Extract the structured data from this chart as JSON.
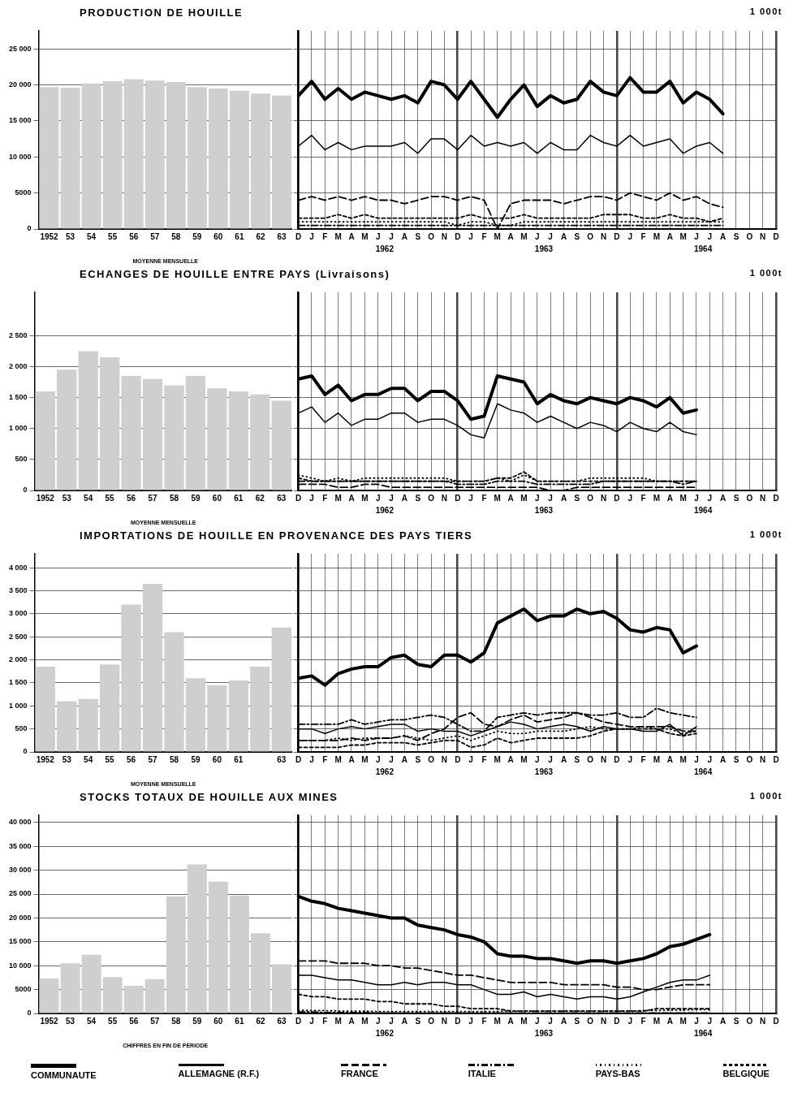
{
  "chart_data": [
    {
      "type": "bar",
      "title": "PRODUCTION DE HOUILLE",
      "xlabel": "MOYENNE MENSUELLE",
      "categories": [
        "1952",
        "53",
        "54",
        "55",
        "56",
        "57",
        "58",
        "59",
        "60",
        "61",
        "62",
        "63"
      ],
      "values": [
        19700,
        19600,
        20200,
        20500,
        20800,
        20600,
        20400,
        19700,
        19500,
        19200,
        18800,
        18500
      ],
      "color": "#cfcfcf",
      "ylim": [
        0,
        27500
      ],
      "yticks": [
        0,
        5000,
        {
          "value": 10000,
          "label": "10 000"
        },
        {
          "value": 15000,
          "label": "15 000"
        },
        {
          "value": 20000,
          "label": "20 000"
        },
        {
          "value": 25000,
          "label": "25 000"
        }
      ],
      "grid": "y"
    },
    {
      "type": "line",
      "ylabel": "1 000t",
      "annotations": [
        "1962",
        "1963",
        "1964"
      ],
      "categories": [
        "D",
        "J",
        "F",
        "M",
        "A",
        "M",
        "J",
        "J",
        "A",
        "S",
        "O",
        "N",
        "D",
        "J",
        "F",
        "M",
        "A",
        "M",
        "J",
        "J",
        "A",
        "S",
        "O",
        "N",
        "D",
        "J",
        "F",
        "M",
        "A",
        "M",
        "J",
        "J",
        "A",
        "S",
        "O",
        "N",
        "D"
      ],
      "ylim": [
        0,
        27500
      ],
      "yticks": [
        0,
        5000,
        10000,
        15000,
        20000,
        25000
      ],
      "tick_labels": "x",
      "grid": true,
      "series": [
        {
          "color": "#000000",
          "line_style": "solid",
          "values": [
            18500,
            20500,
            18000,
            19500,
            18000,
            19000,
            18500,
            18000,
            18500,
            17500,
            20500,
            20000,
            18000,
            20500,
            18000,
            15500,
            18000,
            20000,
            17000,
            18500,
            17500,
            18000,
            20500,
            19000,
            18500,
            21000,
            19000,
            19000,
            20500,
            17500,
            19000,
            18000,
            16000,
            null,
            null,
            null,
            null
          ]
        },
        {
          "color": "#000000",
          "line_style": "solid",
          "values": [
            11500,
            13000,
            11000,
            12000,
            11000,
            11500,
            11500,
            11500,
            12000,
            10500,
            12500,
            12500,
            11000,
            13000,
            11500,
            12000,
            11500,
            12000,
            10500,
            12000,
            11000,
            11000,
            13000,
            12000,
            11500,
            13000,
            11500,
            12000,
            12500,
            10500,
            11500,
            12000,
            10500,
            null,
            null,
            null,
            null
          ]
        },
        {
          "color": "#000000",
          "line_style": "dashed",
          "values": [
            4000,
            4500,
            4000,
            4500,
            4000,
            4500,
            4000,
            4000,
            3500,
            4000,
            4500,
            4500,
            4000,
            4500,
            4000,
            0,
            3500,
            4000,
            4000,
            4000,
            3500,
            4000,
            4500,
            4500,
            4000,
            5000,
            4500,
            4000,
            5000,
            4000,
            4500,
            3500,
            3000,
            null,
            null,
            null,
            null
          ]
        },
        {
          "color": "#000000",
          "line_style": "dashdot",
          "values": [
            500,
            500,
            500,
            500,
            500,
            500,
            500,
            500,
            500,
            500,
            500,
            500,
            500,
            500,
            500,
            500,
            500,
            500,
            500,
            500,
            500,
            500,
            500,
            500,
            500,
            500,
            500,
            500,
            500,
            500,
            500,
            500,
            500,
            null,
            null,
            null,
            null
          ]
        },
        {
          "color": "#000000",
          "line_style": "dotted",
          "values": [
            1000,
            1000,
            1000,
            1000,
            1000,
            1000,
            1000,
            1000,
            1000,
            1000,
            1000,
            1000,
            500,
            1000,
            1000,
            500,
            500,
            1000,
            1000,
            1000,
            1000,
            1000,
            1000,
            1000,
            1000,
            1000,
            1000,
            1000,
            1000,
            1000,
            1000,
            1000,
            1000,
            null,
            null,
            null,
            null
          ]
        },
        {
          "color": "#000000",
          "line_style": "finedash",
          "values": [
            1500,
            1500,
            1500,
            2000,
            1500,
            2000,
            1500,
            1500,
            1500,
            1500,
            1500,
            1500,
            1500,
            2000,
            1500,
            1500,
            1500,
            2000,
            1500,
            1500,
            1500,
            1500,
            1500,
            2000,
            2000,
            2000,
            1500,
            1500,
            2000,
            1500,
            1500,
            1000,
            1500,
            null,
            null,
            null,
            null
          ]
        }
      ]
    },
    {
      "type": "bar",
      "title": "ECHANGES DE HOUILLE ENTRE PAYS (Livraisons)",
      "xlabel": "MOYENNE MENSUELLE",
      "categories": [
        "1952",
        "53",
        "54",
        "55",
        "56",
        "57",
        "58",
        "59",
        "60",
        "61",
        "62",
        "63"
      ],
      "values": [
        1600,
        1950,
        2250,
        2150,
        1850,
        1800,
        1700,
        1850,
        1650,
        1600,
        1550,
        1450
      ],
      "color": "#cfcfcf",
      "ylim": [
        0,
        3200
      ],
      "yticks": [
        0,
        500,
        {
          "value": 1000,
          "label": "1 000"
        },
        {
          "value": 1500,
          "label": "1 500"
        },
        {
          "value": 2000,
          "label": "2 000"
        },
        {
          "value": 2500,
          "label": "2 500"
        }
      ],
      "grid": "y"
    },
    {
      "type": "line",
      "ylabel": "1 000t",
      "annotations": [
        "1962",
        "1963",
        "1964"
      ],
      "categories": [
        "D",
        "J",
        "F",
        "M",
        "A",
        "M",
        "J",
        "J",
        "A",
        "S",
        "O",
        "N",
        "D",
        "J",
        "F",
        "M",
        "A",
        "M",
        "J",
        "J",
        "A",
        "S",
        "O",
        "N",
        "D",
        "J",
        "F",
        "M",
        "A",
        "M",
        "J",
        "J",
        "A",
        "S",
        "O",
        "N",
        "D"
      ],
      "ylim": [
        0,
        3200
      ],
      "yticks": [
        0,
        500,
        1000,
        1500,
        2000,
        2500
      ],
      "tick_labels": "x",
      "grid": true,
      "series": [
        {
          "color": "#000000",
          "line_style": "solid",
          "values": [
            1800,
            1850,
            1550,
            1700,
            1450,
            1550,
            1550,
            1650,
            1650,
            1450,
            1600,
            1600,
            1450,
            1150,
            1200,
            1850,
            1800,
            1750,
            1400,
            1550,
            1450,
            1400,
            1500,
            1450,
            1400,
            1500,
            1450,
            1350,
            1500,
            1250,
            1300,
            null,
            null,
            null,
            null,
            null,
            null
          ]
        },
        {
          "color": "#000000",
          "line_style": "solid",
          "values": [
            1250,
            1350,
            1100,
            1250,
            1050,
            1150,
            1150,
            1250,
            1250,
            1100,
            1150,
            1150,
            1050,
            900,
            850,
            1400,
            1300,
            1250,
            1100,
            1200,
            1100,
            1000,
            1100,
            1050,
            950,
            1100,
            1000,
            950,
            1100,
            950,
            900,
            null,
            null,
            null,
            null,
            null,
            null
          ]
        },
        {
          "color": "#000000",
          "line_style": "dashed",
          "values": [
            100,
            100,
            100,
            50,
            50,
            100,
            100,
            50,
            50,
            50,
            50,
            50,
            50,
            50,
            50,
            50,
            50,
            50,
            50,
            0,
            0,
            50,
            50,
            50,
            50,
            50,
            50,
            50,
            50,
            50,
            50,
            null,
            null,
            null,
            null,
            null,
            null
          ]
        },
        {
          "color": "#000000",
          "line_style": "dashdot",
          "values": [
            150,
            150,
            150,
            150,
            150,
            150,
            150,
            150,
            150,
            150,
            150,
            150,
            100,
            100,
            100,
            150,
            150,
            150,
            100,
            100,
            100,
            100,
            100,
            150,
            150,
            150,
            150,
            150,
            150,
            100,
            150,
            null,
            null,
            null,
            null,
            null,
            null
          ]
        },
        {
          "color": "#000000",
          "line_style": "dotted",
          "values": [
            250,
            200,
            150,
            200,
            150,
            200,
            200,
            200,
            200,
            200,
            200,
            200,
            150,
            150,
            150,
            200,
            150,
            250,
            150,
            150,
            150,
            150,
            200,
            200,
            200,
            200,
            200,
            150,
            150,
            150,
            150,
            null,
            null,
            null,
            null,
            null,
            null
          ]
        },
        {
          "color": "#000000",
          "line_style": "finedash",
          "values": [
            200,
            150,
            150,
            150,
            150,
            150,
            150,
            150,
            150,
            150,
            150,
            150,
            150,
            150,
            150,
            200,
            200,
            300,
            150,
            150,
            150,
            150,
            150,
            150,
            150,
            150,
            150,
            150,
            150,
            150,
            150,
            null,
            null,
            null,
            null,
            null,
            null
          ]
        }
      ]
    },
    {
      "type": "bar",
      "title": "IMPORTATIONS DE HOUILLE EN PROVENANCE DES PAYS TIERS",
      "xlabel": "MOYENNE MENSUELLE",
      "categories": [
        "1952",
        "53",
        "54",
        "55",
        "56",
        "57",
        "58",
        "59",
        "60",
        "61",
        null,
        "63"
      ],
      "values": [
        1850,
        1100,
        1150,
        1900,
        3200,
        3650,
        2600,
        1600,
        1450,
        1550,
        1850,
        2700
      ],
      "color": "#cfcfcf",
      "ylim": [
        0,
        4300
      ],
      "yticks": [
        0,
        500,
        {
          "value": 1000,
          "label": "1 000"
        },
        {
          "value": 1500,
          "label": "1 500"
        },
        {
          "value": 2000,
          "label": "2 000"
        },
        {
          "value": 2500,
          "label": "2 500"
        },
        {
          "value": 3000,
          "label": "3 000"
        },
        {
          "value": 3500,
          "label": "3 500"
        },
        {
          "value": 4000,
          "label": "4 000"
        }
      ],
      "grid": "y"
    },
    {
      "type": "line",
      "ylabel": "1 000t",
      "annotations": [
        "1962",
        "1963",
        "1964"
      ],
      "categories": [
        "D",
        "J",
        "F",
        "M",
        "A",
        "M",
        "J",
        "J",
        "A",
        "S",
        "O",
        "N",
        "D",
        "J",
        "F",
        "M",
        "A",
        "M",
        "J",
        "J",
        "A",
        "S",
        "O",
        "N",
        "D",
        "J",
        "F",
        "M",
        "A",
        "M",
        "J",
        "J",
        "A",
        "S",
        "O",
        "N",
        "D"
      ],
      "ylim": [
        0,
        4300
      ],
      "yticks": [
        0,
        500,
        1000,
        1500,
        2000,
        2500,
        3000,
        3500,
        4000
      ],
      "tick_labels": "x",
      "grid": true,
      "series": [
        {
          "color": "#000000",
          "line_style": "solid",
          "values": [
            1600,
            1650,
            1450,
            1700,
            1800,
            1850,
            1850,
            2050,
            2100,
            1900,
            1850,
            2100,
            2100,
            1950,
            2150,
            2800,
            2950,
            3100,
            2850,
            2950,
            2950,
            3100,
            3000,
            3050,
            2900,
            2650,
            2600,
            2700,
            2650,
            2150,
            2300,
            null,
            null,
            null,
            null,
            null,
            null
          ]
        },
        {
          "color": "#000000",
          "line_style": "solid",
          "values": [
            500,
            500,
            400,
            500,
            550,
            500,
            550,
            600,
            600,
            450,
            500,
            450,
            450,
            350,
            450,
            550,
            650,
            600,
            500,
            550,
            600,
            550,
            450,
            550,
            500,
            500,
            450,
            450,
            600,
            350,
            550,
            null,
            null,
            null,
            null,
            null,
            null
          ]
        },
        {
          "color": "#000000",
          "line_style": "dashed",
          "values": [
            250,
            250,
            250,
            250,
            300,
            250,
            300,
            300,
            350,
            250,
            400,
            500,
            750,
            850,
            600,
            550,
            700,
            800,
            650,
            700,
            750,
            850,
            750,
            650,
            600,
            550,
            550,
            550,
            550,
            450,
            450,
            null,
            null,
            null,
            null,
            null,
            null
          ]
        },
        {
          "color": "#000000",
          "line_style": "dashdot",
          "values": [
            600,
            600,
            600,
            600,
            700,
            600,
            650,
            700,
            700,
            750,
            800,
            750,
            600,
            450,
            450,
            750,
            800,
            850,
            800,
            850,
            850,
            850,
            800,
            800,
            850,
            750,
            750,
            950,
            850,
            800,
            750,
            null,
            null,
            null,
            null,
            null,
            null
          ]
        },
        {
          "color": "#000000",
          "line_style": "dotted",
          "values": [
            250,
            250,
            250,
            300,
            250,
            300,
            300,
            300,
            350,
            300,
            250,
            300,
            350,
            250,
            350,
            450,
            400,
            400,
            450,
            450,
            450,
            500,
            550,
            500,
            500,
            500,
            550,
            500,
            500,
            400,
            450,
            null,
            null,
            null,
            null,
            null,
            null
          ]
        },
        {
          "color": "#000000",
          "line_style": "finedash",
          "values": [
            100,
            100,
            100,
            100,
            150,
            150,
            200,
            200,
            200,
            150,
            200,
            250,
            250,
            100,
            150,
            300,
            200,
            250,
            300,
            300,
            300,
            300,
            350,
            450,
            500,
            500,
            500,
            500,
            400,
            350,
            400,
            null,
            null,
            null,
            null,
            null,
            null
          ]
        }
      ]
    },
    {
      "type": "bar",
      "title": "STOCKS TOTAUX DE HOUILLE AUX MINES",
      "xlabel": "CHIFFRES EN FIN DE PERIODE",
      "categories": [
        "1952",
        "53",
        "54",
        "55",
        "56",
        "57",
        "58",
        "59",
        "60",
        "61",
        "62",
        "63"
      ],
      "values": [
        7300,
        10500,
        12300,
        7600,
        5800,
        7200,
        24500,
        31200,
        27600,
        24700,
        16800,
        10300
      ],
      "color": "#cfcfcf",
      "ylim": [
        0,
        41500
      ],
      "yticks": [
        0,
        5000,
        {
          "value": 10000,
          "label": "10 000"
        },
        {
          "value": 15000,
          "label": "15 000"
        },
        {
          "value": 20000,
          "label": "20 000"
        },
        {
          "value": 25000,
          "label": "25 000"
        },
        {
          "value": 30000,
          "label": "30 000"
        },
        {
          "value": 35000,
          "label": "35 000"
        },
        {
          "value": 40000,
          "label": "40 000"
        }
      ],
      "grid": "y"
    },
    {
      "type": "line",
      "ylabel": "1 000t",
      "annotations": [
        "1962",
        "1963",
        "1964"
      ],
      "legend": "bottom",
      "categories": [
        "D",
        "J",
        "F",
        "M",
        "A",
        "M",
        "J",
        "J",
        "A",
        "S",
        "O",
        "N",
        "D",
        "J",
        "F",
        "M",
        "A",
        "M",
        "J",
        "J",
        "A",
        "S",
        "O",
        "N",
        "D",
        "J",
        "F",
        "M",
        "A",
        "M",
        "J",
        "J",
        "A",
        "S",
        "O",
        "N",
        "D"
      ],
      "ylim": [
        0,
        41500
      ],
      "yticks": [
        0,
        5000,
        10000,
        15000,
        20000,
        25000,
        30000,
        35000,
        40000
      ],
      "tick_labels": "x",
      "grid": true,
      "series": [
        {
          "name": "COMMUNAUTE",
          "color": "#000000",
          "line_style": "solid",
          "values": [
            24500,
            23500,
            23000,
            22000,
            21500,
            21000,
            20500,
            20000,
            20000,
            18500,
            18000,
            17500,
            16500,
            16000,
            15000,
            12500,
            12000,
            12000,
            11500,
            11500,
            11000,
            10500,
            11000,
            11000,
            10500,
            11000,
            11500,
            12500,
            14000,
            14500,
            15500,
            16500,
            null,
            null,
            null,
            null,
            null
          ]
        },
        {
          "name": "ALLEMAGNE (R.F.)",
          "color": "#000000",
          "line_style": "solid",
          "values": [
            8000,
            8000,
            7500,
            7000,
            7000,
            6500,
            6000,
            6000,
            6500,
            6000,
            6500,
            6500,
            6000,
            6000,
            5000,
            4000,
            4000,
            4500,
            3500,
            4000,
            3500,
            3000,
            3500,
            3500,
            3000,
            3500,
            4500,
            5500,
            6500,
            7000,
            7000,
            8000,
            null,
            null,
            null,
            null,
            null
          ]
        },
        {
          "name": "FRANCE",
          "color": "#000000",
          "line_style": "dashed",
          "values": [
            11000,
            11000,
            11000,
            10500,
            10500,
            10500,
            10000,
            10000,
            9500,
            9500,
            9000,
            8500,
            8000,
            8000,
            7500,
            7000,
            6500,
            6500,
            6500,
            6500,
            6000,
            6000,
            6000,
            6000,
            5500,
            5500,
            5000,
            5000,
            5500,
            6000,
            6000,
            6000,
            null,
            null,
            null,
            null,
            null
          ]
        },
        {
          "name": "ITALIE",
          "color": "#000000",
          "line_style": "dashdot",
          "values": [
            300,
            300,
            200,
            200,
            200,
            200,
            100,
            100,
            100,
            100,
            100,
            100,
            100,
            100,
            100,
            100,
            100,
            100,
            100,
            100,
            100,
            100,
            100,
            100,
            100,
            100,
            100,
            100,
            100,
            100,
            100,
            100,
            null,
            null,
            null,
            null,
            null
          ]
        },
        {
          "name": "PAYS-BAS",
          "color": "#000000",
          "line_style": "dotted",
          "values": [
            700,
            600,
            600,
            500,
            500,
            500,
            400,
            400,
            400,
            400,
            400,
            400,
            400,
            400,
            400,
            400,
            500,
            500,
            500,
            500,
            500,
            500,
            500,
            500,
            500,
            500,
            600,
            600,
            700,
            700,
            800,
            800,
            null,
            null,
            null,
            null,
            null
          ]
        },
        {
          "name": "BELGIQUE",
          "color": "#000000",
          "line_style": "finedash",
          "values": [
            4000,
            3500,
            3500,
            3000,
            3000,
            3000,
            2500,
            2500,
            2000,
            2000,
            2000,
            1500,
            1500,
            1000,
            1000,
            1000,
            500,
            500,
            500,
            500,
            500,
            500,
            500,
            500,
            500,
            500,
            500,
            1000,
            1000,
            1000,
            1000,
            1000,
            null,
            null,
            null,
            null,
            null
          ]
        }
      ]
    }
  ]
}
